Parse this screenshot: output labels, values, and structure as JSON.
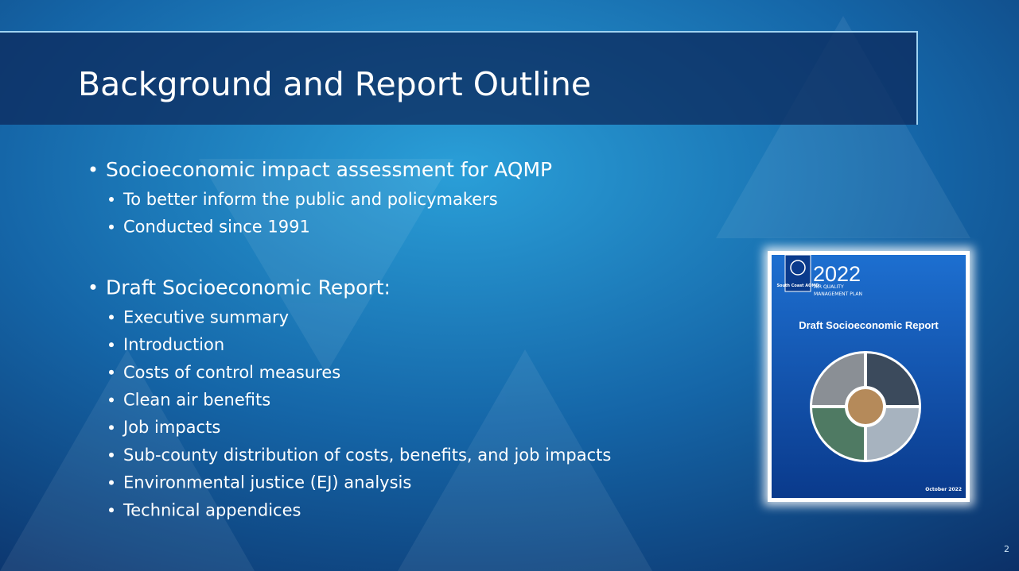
{
  "title": "Background and Report Outline",
  "bullets": [
    {
      "text": "Socioeconomic impact assessment for AQMP",
      "sub": [
        "To better inform the public and policymakers",
        "Conducted since 1991"
      ]
    },
    {
      "text": "Draft Socioeconomic Report:",
      "sub": [
        "Executive summary",
        "Introduction",
        "Costs of control measures",
        "Clean air benefits",
        "Job impacts",
        "Sub-county distribution of costs, benefits, and job impacts",
        "Environmental justice (EJ) analysis",
        "Technical appendices"
      ]
    }
  ],
  "cover": {
    "logo": "South Coast AQMD",
    "year": "2022",
    "plan_line1": "AIR QUALITY",
    "plan_line2": "MANAGEMENT PLAN",
    "report_title": "Draft Socioeconomic Report",
    "date": "October 2022"
  },
  "page_number": "2"
}
